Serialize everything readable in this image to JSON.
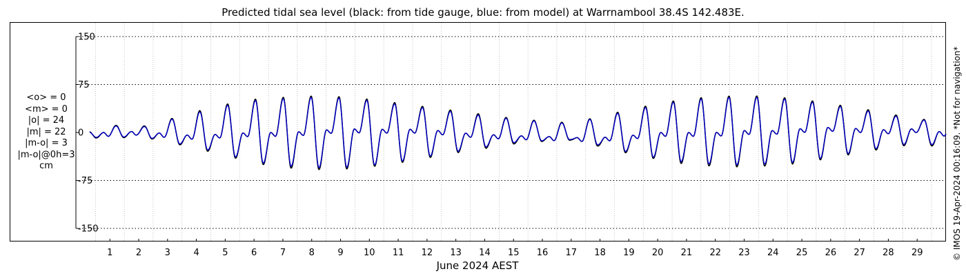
{
  "title": "Predicted tidal sea level (black: from tide gauge, blue: from model) at Warrnambool 38.4S 142.483E.",
  "stats": [
    "<o> = 0",
    "<m> = 0",
    "|o| = 24",
    "|m| = 22",
    "|m-o| = 3",
    "|m-o|@0h=3",
    "cm"
  ],
  "credit": "© IMOS 19-Apr-2024 00:16:09. *Not for navigation*",
  "colors": {
    "observed": "#000000",
    "model": "#0000cc",
    "grid": "#aaaaaa"
  },
  "chart_data": {
    "type": "line",
    "title": "Predicted tidal sea level (black: from tide gauge, blue: from model) at Warrnambool 38.4S 142.483E.",
    "xlabel": "June 2024 AEST",
    "ylabel": "",
    "xlim": [
      0.3,
      30.0
    ],
    "ylim": [
      -160,
      160
    ],
    "yticks": [
      150,
      75,
      0,
      -75,
      -150
    ],
    "ytick_labels": [
      "150",
      "75",
      "0",
      "-75",
      "-150"
    ],
    "xticks": [
      1,
      2,
      3,
      4,
      5,
      6,
      7,
      8,
      9,
      10,
      11,
      12,
      13,
      14,
      15,
      16,
      17,
      18,
      19,
      20,
      21,
      22,
      23,
      24,
      25,
      26,
      27,
      28,
      29
    ],
    "xtick_labels": [
      "1",
      "2",
      "3",
      "4",
      "5",
      "6",
      "7",
      "8",
      "9",
      "10",
      "11",
      "12",
      "13",
      "14",
      "15",
      "16",
      "17",
      "18",
      "19",
      "20",
      "21",
      "22",
      "23",
      "24",
      "25",
      "26",
      "27",
      "28",
      "29"
    ],
    "grid": true,
    "series_sampling": "Values are daily higher high water, lower low water and secondary high water (cm), read from the plot.",
    "series": [
      {
        "key": "observed",
        "x": [
          0.3,
          1.0,
          2.0,
          3.0,
          4.0,
          5.0,
          6.0,
          7.0,
          8.0,
          9.0,
          10.0,
          11.0,
          12.0,
          13.0,
          14.0,
          15.0,
          16.0,
          17.0,
          18.0,
          19.0,
          20.0,
          21.0,
          22.0,
          23.0,
          24.0,
          25.0,
          26.0,
          27.0,
          28.0,
          29.0,
          30.0
        ],
        "hh": [
          2,
          12,
          8,
          20,
          33,
          44,
          52,
          55,
          57,
          56,
          52,
          46,
          40,
          34,
          28,
          22,
          18,
          15,
          25,
          36,
          45,
          53,
          56,
          58,
          56,
          52,
          45,
          38,
          30,
          20,
          22
        ],
        "ll": [
          -8,
          -10,
          -6,
          -15,
          -25,
          -36,
          -48,
          -55,
          -58,
          -58,
          -54,
          -48,
          -40,
          -32,
          -25,
          -18,
          -14,
          -12,
          -22,
          -33,
          -42,
          -50,
          -53,
          -54,
          -52,
          -48,
          -40,
          -32,
          -24,
          -18,
          -24
        ],
        "sh": [
          0,
          0,
          2,
          -2,
          -5,
          -2,
          0,
          0,
          2,
          6,
          5,
          5,
          5,
          0,
          -3,
          -5,
          -6,
          -8,
          -8,
          -5,
          0,
          0,
          0,
          3,
          3,
          6,
          8,
          6,
          4,
          6,
          0
        ]
      },
      {
        "key": "model",
        "x": [
          0.3,
          1.0,
          2.0,
          3.0,
          4.0,
          5.0,
          6.0,
          7.0,
          8.0,
          9.0,
          10.0,
          11.0,
          12.0,
          13.0,
          14.0,
          15.0,
          16.0,
          17.0,
          18.0,
          19.0,
          20.0,
          21.0,
          22.0,
          23.0,
          24.0,
          25.0,
          26.0,
          27.0,
          28.0,
          29.0,
          30.0
        ],
        "hh": [
          1,
          11,
          7,
          19,
          31,
          42,
          50,
          53,
          55,
          54,
          50,
          44,
          38,
          32,
          26,
          21,
          17,
          14,
          24,
          34,
          43,
          51,
          54,
          56,
          54,
          50,
          43,
          36,
          28,
          19,
          21
        ],
        "ll": [
          -7,
          -9,
          -5,
          -14,
          -23,
          -34,
          -46,
          -52,
          -55,
          -55,
          -52,
          -46,
          -38,
          -30,
          -23,
          -16,
          -13,
          -11,
          -20,
          -31,
          -40,
          -47,
          -50,
          -51,
          -49,
          -46,
          -38,
          -30,
          -22,
          -16,
          -22
        ],
        "sh": [
          0,
          0,
          2,
          -2,
          -5,
          -2,
          0,
          0,
          2,
          6,
          5,
          5,
          5,
          0,
          -3,
          -5,
          -6,
          -8,
          -8,
          -5,
          0,
          0,
          0,
          3,
          3,
          6,
          8,
          6,
          4,
          6,
          0
        ]
      }
    ]
  }
}
